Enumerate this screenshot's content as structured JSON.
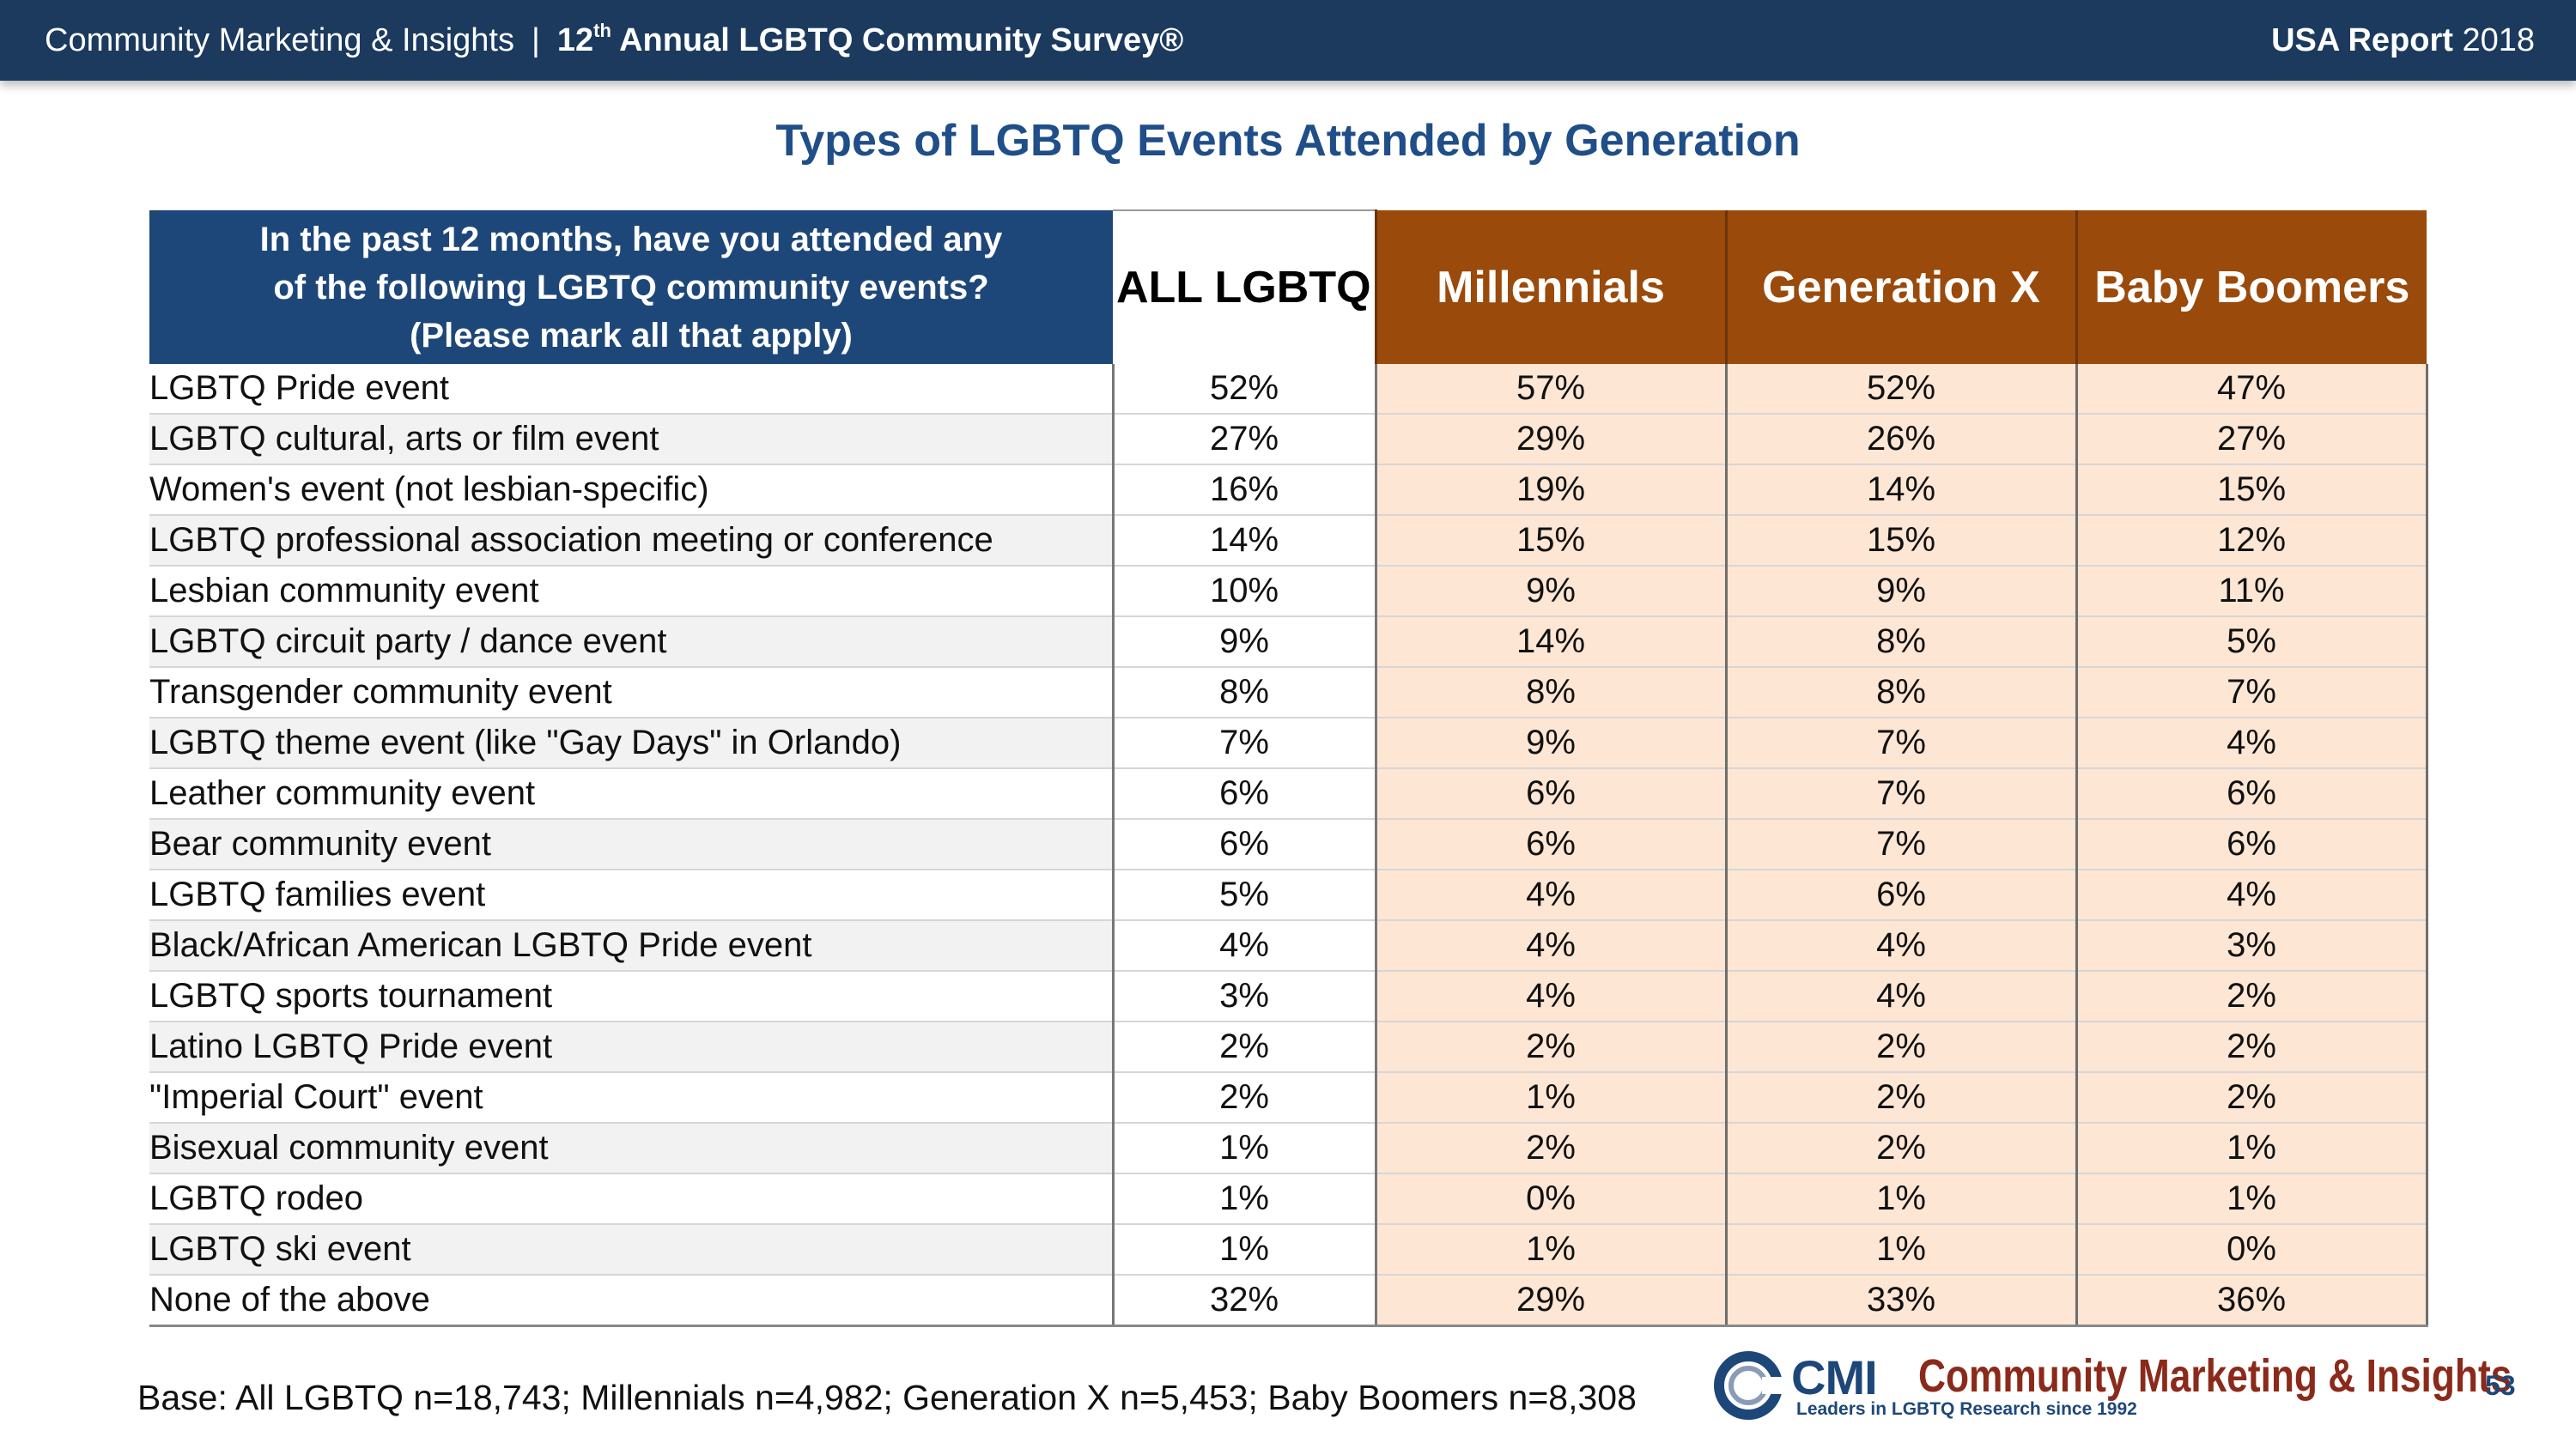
{
  "header": {
    "org": "Community Marketing & Insights",
    "separator": "|",
    "survey_ordinal": "12",
    "survey_ordinal_suffix": "th",
    "survey_name": "Annual LGBTQ Community Survey®",
    "report_label": "USA Report",
    "report_year": "2018"
  },
  "title": "Types of LGBTQ Events Attended by Generation",
  "table": {
    "question_lines": [
      "In the past 12 months, have you attended any",
      "of the following LGBTQ community events?",
      "(Please mark all that apply)"
    ],
    "columns": [
      "ALL LGBTQ",
      "Millennials",
      "Generation X",
      "Baby Boomers"
    ],
    "rows": [
      {
        "label": "LGBTQ Pride event",
        "values": [
          "52%",
          "57%",
          "52%",
          "47%"
        ]
      },
      {
        "label": "LGBTQ cultural, arts or film event",
        "values": [
          "27%",
          "29%",
          "26%",
          "27%"
        ]
      },
      {
        "label": "Women's event (not lesbian-specific)",
        "values": [
          "16%",
          "19%",
          "14%",
          "15%"
        ]
      },
      {
        "label": "LGBTQ professional association meeting or conference",
        "values": [
          "14%",
          "15%",
          "15%",
          "12%"
        ]
      },
      {
        "label": "Lesbian community event",
        "values": [
          "10%",
          "9%",
          "9%",
          "11%"
        ]
      },
      {
        "label": "LGBTQ circuit party / dance event",
        "values": [
          "9%",
          "14%",
          "8%",
          "5%"
        ]
      },
      {
        "label": "Transgender community event",
        "values": [
          "8%",
          "8%",
          "8%",
          "7%"
        ]
      },
      {
        "label": "LGBTQ theme event (like \"Gay Days\" in Orlando)",
        "values": [
          "7%",
          "9%",
          "7%",
          "4%"
        ]
      },
      {
        "label": "Leather community event",
        "values": [
          "6%",
          "6%",
          "7%",
          "6%"
        ]
      },
      {
        "label": "Bear community event",
        "values": [
          "6%",
          "6%",
          "7%",
          "6%"
        ]
      },
      {
        "label": "LGBTQ families event",
        "values": [
          "5%",
          "4%",
          "6%",
          "4%"
        ]
      },
      {
        "label": "Black/African American LGBTQ Pride event",
        "values": [
          "4%",
          "4%",
          "4%",
          "3%"
        ]
      },
      {
        "label": "LGBTQ sports tournament",
        "values": [
          "3%",
          "4%",
          "4%",
          "2%"
        ]
      },
      {
        "label": "Latino LGBTQ Pride event",
        "values": [
          "2%",
          "2%",
          "2%",
          "2%"
        ]
      },
      {
        "label": "\"Imperial Court\" event",
        "values": [
          "2%",
          "1%",
          "2%",
          "2%"
        ]
      },
      {
        "label": "Bisexual community event",
        "values": [
          "1%",
          "2%",
          "2%",
          "1%"
        ]
      },
      {
        "label": "LGBTQ rodeo",
        "values": [
          "1%",
          "0%",
          "1%",
          "1%"
        ]
      },
      {
        "label": "LGBTQ ski event",
        "values": [
          "1%",
          "1%",
          "1%",
          "0%"
        ]
      },
      {
        "label": "None of the above",
        "values": [
          "32%",
          "29%",
          "33%",
          "36%"
        ]
      }
    ]
  },
  "footer": {
    "base_note": "Base: All LGBTQ n=18,743; Millennials n=4,982; Generation X n=5,453; Baby Boomers n=8,308",
    "logo_acronym": "CMI",
    "logo_name": "Community Marketing & Insights",
    "logo_tagline": "Leaders in LGBTQ Research since 1992",
    "page_number": "53"
  },
  "colors": {
    "header_bar": "#1b3a5e",
    "title": "#1f4e88",
    "question_header": "#1e4779",
    "generation_header": "#9a4a0b",
    "generation_cell": "#fde6d4",
    "logo_name": "#8b2a1a"
  },
  "icons": {
    "logo_mark": "cmi-c-logo-icon"
  }
}
